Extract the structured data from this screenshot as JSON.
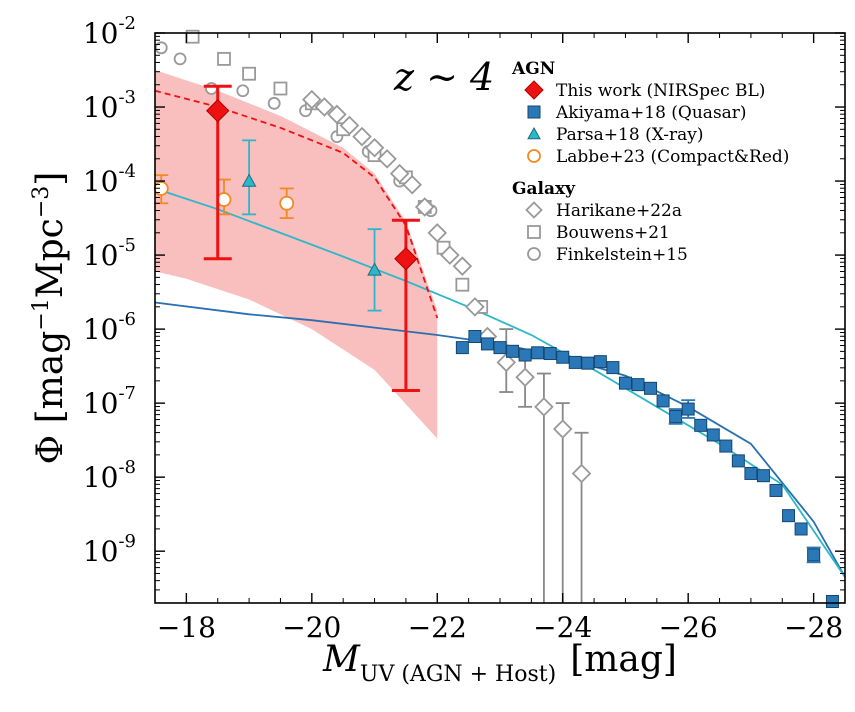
{
  "chart_data": {
    "type": "scatter",
    "title": "z ∼ 4",
    "xlabel": {
      "main": "M",
      "sub": "UV (AGN + Host)",
      "unit": "[mag]"
    },
    "ylabel": {
      "symbol": "Φ",
      "open": "[",
      "u1": "mag",
      "e1": "−1",
      "u2": "Mpc",
      "e2": "−3",
      "close": "]"
    },
    "xlim": [
      -17.5,
      -28.5
    ],
    "ylim_log10": [
      -9.7,
      -2
    ],
    "x_ticks": [
      {
        "value": -18,
        "label": "−18"
      },
      {
        "value": -20,
        "label": "−20"
      },
      {
        "value": -22,
        "label": "−22"
      },
      {
        "value": -24,
        "label": "−24"
      },
      {
        "value": -26,
        "label": "−26"
      },
      {
        "value": -28,
        "label": "−28"
      }
    ],
    "y_ticks": [
      {
        "value": -2,
        "base": "10",
        "exp": "-2"
      },
      {
        "value": -3,
        "base": "10",
        "exp": "-3"
      },
      {
        "value": -4,
        "base": "10",
        "exp": "-4"
      },
      {
        "value": -5,
        "base": "10",
        "exp": "-5"
      },
      {
        "value": -6,
        "base": "10",
        "exp": "-6"
      },
      {
        "value": -7,
        "base": "10",
        "exp": "-7"
      },
      {
        "value": -8,
        "base": "10",
        "exp": "-8"
      },
      {
        "value": -9,
        "base": "10",
        "exp": "-9"
      }
    ],
    "legend": {
      "placement": "top-right",
      "agn_heading": "AGN",
      "galaxy_heading": "Galaxy",
      "entries": [
        {
          "group": "agn",
          "label": "This work (NIRSpec BL)",
          "marker": "diamond-filled",
          "color": "#ee1111"
        },
        {
          "group": "agn",
          "label": "Akiyama+18 (Quasar)",
          "marker": "square-filled",
          "color": "#2a78b8"
        },
        {
          "group": "agn",
          "label": "Parsa+18 (X-ray)",
          "marker": "triangle-filled",
          "color": "#2bb8cc"
        },
        {
          "group": "agn",
          "label": "Labbe+23 (Compact&Red)",
          "marker": "circle-open",
          "color": "#f08a24"
        },
        {
          "group": "galaxy",
          "label": "Harikane+22a",
          "marker": "diamond-open",
          "color": "#999999"
        },
        {
          "group": "galaxy",
          "label": "Bouwens+21",
          "marker": "square-open",
          "color": "#999999"
        },
        {
          "group": "galaxy",
          "label": "Finkelstein+15",
          "marker": "circle-open",
          "color": "#999999"
        }
      ]
    },
    "series": [
      {
        "name": "This work (NIRSpec BL)",
        "color": "#ee1111",
        "points": [
          {
            "x": -18.5,
            "logy": -3.05,
            "lo": -5.05,
            "hi": -2.72
          },
          {
            "x": -21.5,
            "logy": -5.05,
            "lo": -6.83,
            "hi": -4.53
          }
        ]
      },
      {
        "name": "Akiyama+18 (Quasar)",
        "color": "#2a78b8",
        "points": [
          {
            "x": -22.4,
            "logy": -6.25
          },
          {
            "x": -22.6,
            "logy": -6.1
          },
          {
            "x": -22.8,
            "logy": -6.2
          },
          {
            "x": -23.0,
            "logy": -6.25
          },
          {
            "x": -23.2,
            "logy": -6.3
          },
          {
            "x": -23.4,
            "logy": -6.35
          },
          {
            "x": -23.6,
            "logy": -6.32
          },
          {
            "x": -23.8,
            "logy": -6.33
          },
          {
            "x": -24.0,
            "logy": -6.38
          },
          {
            "x": -24.2,
            "logy": -6.45
          },
          {
            "x": -24.4,
            "logy": -6.46
          },
          {
            "x": -24.6,
            "logy": -6.44
          },
          {
            "x": -24.8,
            "logy": -6.52
          },
          {
            "x": -25.0,
            "logy": -6.73
          },
          {
            "x": -25.2,
            "logy": -6.75
          },
          {
            "x": -25.4,
            "logy": -6.8
          },
          {
            "x": -25.6,
            "logy": -6.97
          },
          {
            "x": -25.8,
            "logy": -7.18,
            "lo": -7.28,
            "hi": -7.08
          },
          {
            "x": -26.0,
            "logy": -7.08,
            "lo": -7.2,
            "hi": -6.96
          },
          {
            "x": -26.2,
            "logy": -7.3
          },
          {
            "x": -26.4,
            "logy": -7.43
          },
          {
            "x": -26.6,
            "logy": -7.58
          },
          {
            "x": -26.8,
            "logy": -7.78
          },
          {
            "x": -27.0,
            "logy": -7.95
          },
          {
            "x": -27.2,
            "logy": -7.98
          },
          {
            "x": -27.4,
            "logy": -8.18
          },
          {
            "x": -27.6,
            "logy": -8.52
          },
          {
            "x": -27.8,
            "logy": -8.7
          },
          {
            "x": -28.0,
            "logy": -9.05,
            "lo": -9.15,
            "hi": -8.95
          },
          {
            "x": -28.3,
            "logy": -9.68
          }
        ]
      },
      {
        "name": "Parsa+18 (X-ray)",
        "color": "#2bb8cc",
        "points": [
          {
            "x": -19.0,
            "logy": -4.0,
            "lo": -4.45,
            "hi": -3.45
          },
          {
            "x": -21.0,
            "logy": -5.2,
            "lo": -5.75,
            "hi": -4.65
          }
        ]
      },
      {
        "name": "Labbe+23 (Compact&Red)",
        "color": "#f08a24",
        "points": [
          {
            "x": -17.6,
            "logy": -4.1,
            "lo": -4.3,
            "hi": -3.92
          },
          {
            "x": -18.6,
            "logy": -4.25,
            "lo": -4.45,
            "hi": -3.98
          },
          {
            "x": -19.6,
            "logy": -4.3,
            "lo": -4.5,
            "hi": -4.1
          }
        ]
      },
      {
        "name": "Harikane+22a",
        "color": "#999999",
        "points": [
          {
            "x": -20.0,
            "logy": -2.9
          },
          {
            "x": -20.2,
            "logy": -3.0
          },
          {
            "x": -20.4,
            "logy": -3.1
          },
          {
            "x": -20.6,
            "logy": -3.25
          },
          {
            "x": -20.8,
            "logy": -3.4
          },
          {
            "x": -21.0,
            "logy": -3.55
          },
          {
            "x": -21.2,
            "logy": -3.7
          },
          {
            "x": -21.4,
            "logy": -3.9
          },
          {
            "x": -21.6,
            "logy": -4.05
          },
          {
            "x": -21.8,
            "logy": -4.35
          },
          {
            "x": -22.0,
            "logy": -4.7
          },
          {
            "x": -22.2,
            "logy": -5.0
          },
          {
            "x": -22.4,
            "logy": -5.15
          },
          {
            "x": -22.6,
            "logy": -5.7
          },
          {
            "x": -22.8,
            "logy": -6.1
          },
          {
            "x": -23.1,
            "logy": -6.45,
            "lo": -6.85,
            "hi": -6.0
          },
          {
            "x": -23.4,
            "logy": -6.65,
            "lo": -7.05,
            "hi": -6.3
          },
          {
            "x": -23.7,
            "logy": -7.05,
            "lo": -9.7,
            "hi": -6.6
          },
          {
            "x": -24.0,
            "logy": -7.35,
            "lo": -9.7,
            "hi": -7.0
          },
          {
            "x": -24.3,
            "logy": -7.95,
            "lo": -9.7,
            "hi": -7.4
          }
        ]
      },
      {
        "name": "Bouwens+21",
        "color": "#999999",
        "points": [
          {
            "x": -18.1,
            "logy": -2.05
          },
          {
            "x": -18.6,
            "logy": -2.35
          },
          {
            "x": -19.0,
            "logy": -2.55
          },
          {
            "x": -19.5,
            "logy": -2.75
          },
          {
            "x": -20.0,
            "logy": -2.95
          },
          {
            "x": -20.5,
            "logy": -3.3
          },
          {
            "x": -21.0,
            "logy": -3.65
          },
          {
            "x": -21.5,
            "logy": -3.95
          },
          {
            "x": -21.8,
            "logy": -4.35
          },
          {
            "x": -22.1,
            "logy": -4.9
          },
          {
            "x": -22.4,
            "logy": -5.4
          },
          {
            "x": -22.7,
            "logy": -5.7
          }
        ]
      },
      {
        "name": "Finkelstein+15",
        "color": "#999999",
        "points": [
          {
            "x": -17.6,
            "logy": -2.2
          },
          {
            "x": -17.9,
            "logy": -2.35
          },
          {
            "x": -18.4,
            "logy": -2.75
          },
          {
            "x": -18.9,
            "logy": -2.78
          },
          {
            "x": -19.4,
            "logy": -2.95
          },
          {
            "x": -19.9,
            "logy": -3.05
          },
          {
            "x": -20.4,
            "logy": -3.4
          },
          {
            "x": -20.9,
            "logy": -3.6
          },
          {
            "x": -21.4,
            "logy": -4.0
          },
          {
            "x": -21.9,
            "logy": -4.4
          }
        ]
      }
    ],
    "curves": [
      {
        "name": "Akiyama fit",
        "color": "#2a6fb0",
        "style": "solid",
        "points": [
          [
            -17.5,
            -5.64
          ],
          [
            -19,
            -5.8
          ],
          [
            -20,
            -5.88
          ],
          [
            -21,
            -5.98
          ],
          [
            -22,
            -6.08
          ],
          [
            -23,
            -6.2
          ],
          [
            -24,
            -6.38
          ],
          [
            -25,
            -6.63
          ],
          [
            -26,
            -7.05
          ],
          [
            -27,
            -7.55
          ],
          [
            -28,
            -8.6
          ],
          [
            -28.5,
            -9.35
          ]
        ]
      },
      {
        "name": "Parsa fit",
        "color": "#2bb8cc",
        "style": "solid",
        "points": [
          [
            -17.5,
            -4.1
          ],
          [
            -18.5,
            -4.38
          ],
          [
            -19.5,
            -4.7
          ],
          [
            -20.5,
            -5.02
          ],
          [
            -21.5,
            -5.35
          ],
          [
            -22.5,
            -5.7
          ],
          [
            -23.5,
            -6.08
          ],
          [
            -24.5,
            -6.55
          ],
          [
            -25.5,
            -7.05
          ],
          [
            -26.5,
            -7.55
          ],
          [
            -27.5,
            -8.1
          ],
          [
            -28.5,
            -9.35
          ]
        ]
      },
      {
        "name": "This work fit",
        "color": "#ee1111",
        "style": "dashed",
        "points": [
          [
            -17.5,
            -2.78
          ],
          [
            -18.5,
            -3.0
          ],
          [
            -19.5,
            -3.28
          ],
          [
            -20.5,
            -3.62
          ],
          [
            -21.0,
            -3.95
          ],
          [
            -21.5,
            -4.6
          ],
          [
            -22.0,
            -5.85
          ]
        ]
      }
    ],
    "band": {
      "name": "This work uncertainty",
      "color": "#f7a8a8",
      "upper": [
        [
          -17.5,
          -2.5
        ],
        [
          -18.5,
          -2.78
        ],
        [
          -19.5,
          -3.12
        ],
        [
          -20.5,
          -3.55
        ],
        [
          -21.0,
          -3.9
        ],
        [
          -21.5,
          -4.55
        ],
        [
          -22.0,
          -5.75
        ]
      ],
      "lower": [
        [
          -22.0,
          -7.48
        ],
        [
          -21.0,
          -6.55
        ],
        [
          -20.0,
          -6.0
        ],
        [
          -19.0,
          -5.6
        ],
        [
          -18.0,
          -5.32
        ],
        [
          -17.5,
          -5.22
        ]
      ]
    }
  }
}
